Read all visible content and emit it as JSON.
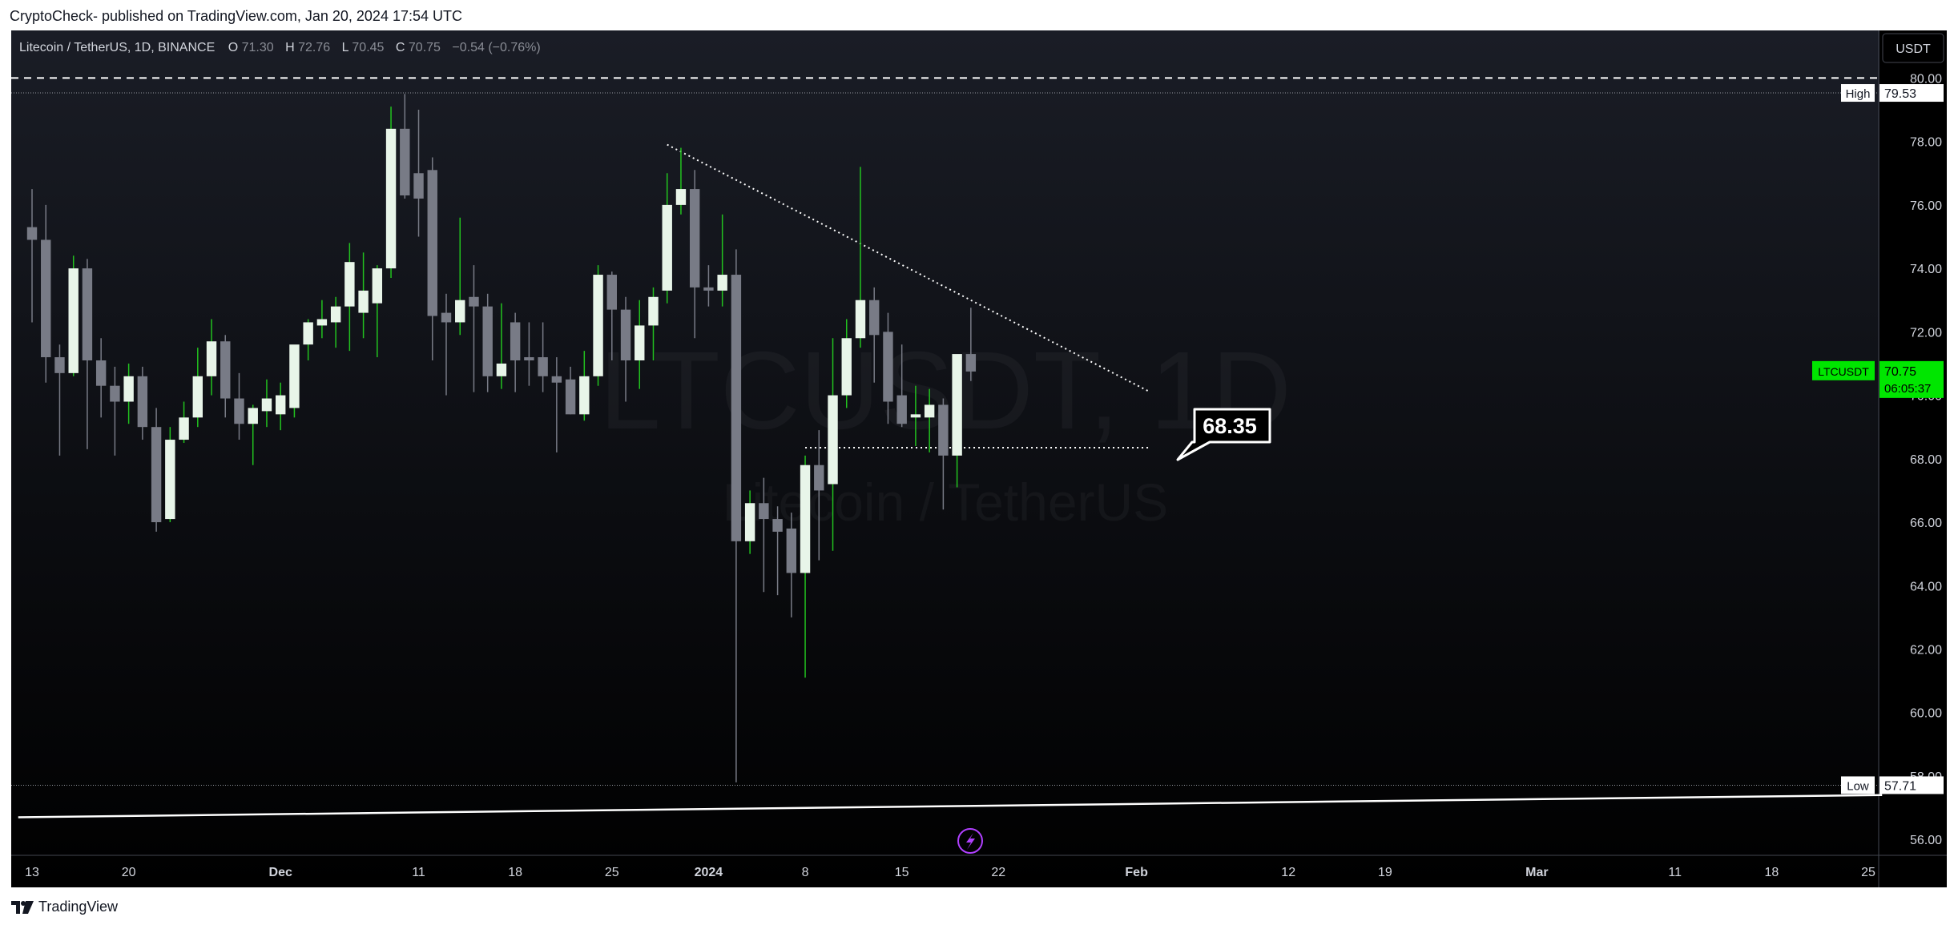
{
  "publish_info": "CryptoCheck- published on TradingView.com, Jan 20, 2024 17:54 UTC",
  "footer_brand": "TradingView",
  "colors": {
    "background_top": "#1a1d26",
    "background_bottom": "#000000",
    "up_candle": "#e8f5e9",
    "up_wick": "#22c21f",
    "down_candle": "#787b86",
    "down_wick": "#787b86",
    "accent_green": "#00e600",
    "text": "#d1d4dc"
  },
  "header": {
    "symbol": "Litecoin / TetherUS, 1D, BINANCE",
    "o_label": "O",
    "o_value": "71.30",
    "h_label": "H",
    "h_value": "72.76",
    "l_label": "L",
    "l_value": "70.45",
    "c_label": "C",
    "c_value": "70.75",
    "change": "−0.54 (−0.76%)"
  },
  "currency_button": "USDT",
  "watermark": {
    "ticker": "LTCUSDT, 1D",
    "name": "Litecoin / TetherUS"
  },
  "price_badges": {
    "high_label": "High",
    "high_value": "79.53",
    "low_label": "Low",
    "low_value": "57.71",
    "last_label": "LTCUSDT",
    "last_value": "70.75",
    "countdown": "06:05:37"
  },
  "callout_label": "68.35",
  "chart_data": {
    "type": "candlestick",
    "title": "Litecoin / TetherUS, 1D, BINANCE",
    "ylim": [
      55.5,
      81.5
    ],
    "xlim": [
      "2023-11-13",
      "2024-03-25"
    ],
    "y_ticks": [
      "56.00",
      "58.00",
      "60.00",
      "62.00",
      "64.00",
      "66.00",
      "68.00",
      "70.00",
      "72.00",
      "74.00",
      "76.00",
      "78.00",
      "80.00"
    ],
    "x_ticks": [
      {
        "date": "2023-11-13",
        "label": "13"
      },
      {
        "date": "2023-11-20",
        "label": "20"
      },
      {
        "date": "2023-12-01",
        "label": "Dec"
      },
      {
        "date": "2023-12-11",
        "label": "11"
      },
      {
        "date": "2023-12-18",
        "label": "18"
      },
      {
        "date": "2023-12-25",
        "label": "25"
      },
      {
        "date": "2024-01-01",
        "label": "2024"
      },
      {
        "date": "2024-01-08",
        "label": "8"
      },
      {
        "date": "2024-01-15",
        "label": "15"
      },
      {
        "date": "2024-01-22",
        "label": "22"
      },
      {
        "date": "2024-02-01",
        "label": "Feb"
      },
      {
        "date": "2024-02-12",
        "label": "12"
      },
      {
        "date": "2024-02-19",
        "label": "19"
      },
      {
        "date": "2024-03-01",
        "label": "Mar"
      },
      {
        "date": "2024-03-11",
        "label": "11"
      },
      {
        "date": "2024-03-18",
        "label": "18"
      },
      {
        "date": "2024-03-25",
        "label": "25"
      }
    ],
    "candles": [
      {
        "date": "2023-11-13",
        "o": 75.3,
        "h": 76.5,
        "l": 72.3,
        "c": 74.9
      },
      {
        "date": "2023-11-14",
        "o": 74.9,
        "h": 76.0,
        "l": 70.4,
        "c": 71.2
      },
      {
        "date": "2023-11-15",
        "o": 71.2,
        "h": 71.6,
        "l": 68.1,
        "c": 70.7
      },
      {
        "date": "2023-11-16",
        "o": 70.7,
        "h": 74.4,
        "l": 70.6,
        "c": 74.0
      },
      {
        "date": "2023-11-17",
        "o": 74.0,
        "h": 74.3,
        "l": 68.3,
        "c": 71.1
      },
      {
        "date": "2023-11-18",
        "o": 71.1,
        "h": 71.8,
        "l": 69.3,
        "c": 70.3
      },
      {
        "date": "2023-11-19",
        "o": 70.3,
        "h": 70.9,
        "l": 68.1,
        "c": 69.8
      },
      {
        "date": "2023-11-20",
        "o": 69.8,
        "h": 71.0,
        "l": 69.1,
        "c": 70.6
      },
      {
        "date": "2023-11-21",
        "o": 70.6,
        "h": 70.9,
        "l": 68.6,
        "c": 69.0
      },
      {
        "date": "2023-11-22",
        "o": 69.0,
        "h": 69.6,
        "l": 65.7,
        "c": 66.0
      },
      {
        "date": "2023-11-23",
        "o": 66.1,
        "h": 69.0,
        "l": 66.0,
        "c": 68.6
      },
      {
        "date": "2023-11-24",
        "o": 68.6,
        "h": 69.8,
        "l": 68.5,
        "c": 69.3
      },
      {
        "date": "2023-11-25",
        "o": 69.3,
        "h": 71.5,
        "l": 69.0,
        "c": 70.6
      },
      {
        "date": "2023-11-26",
        "o": 70.6,
        "h": 72.4,
        "l": 70.0,
        "c": 71.7
      },
      {
        "date": "2023-11-27",
        "o": 71.7,
        "h": 71.9,
        "l": 69.3,
        "c": 69.9
      },
      {
        "date": "2023-11-28",
        "o": 69.9,
        "h": 70.7,
        "l": 68.6,
        "c": 69.1
      },
      {
        "date": "2023-11-29",
        "o": 69.1,
        "h": 69.7,
        "l": 67.8,
        "c": 69.6
      },
      {
        "date": "2023-11-30",
        "o": 69.5,
        "h": 70.5,
        "l": 69.0,
        "c": 69.9
      },
      {
        "date": "2023-12-01",
        "o": 69.4,
        "h": 70.4,
        "l": 68.9,
        "c": 70.0
      },
      {
        "date": "2023-12-02",
        "o": 69.6,
        "h": 71.5,
        "l": 69.3,
        "c": 71.6
      },
      {
        "date": "2023-12-03",
        "o": 71.6,
        "h": 72.4,
        "l": 71.1,
        "c": 72.3
      },
      {
        "date": "2023-12-04",
        "o": 72.2,
        "h": 73.0,
        "l": 71.8,
        "c": 72.4
      },
      {
        "date": "2023-12-05",
        "o": 72.3,
        "h": 73.1,
        "l": 71.5,
        "c": 72.8
      },
      {
        "date": "2023-12-06",
        "o": 72.8,
        "h": 74.8,
        "l": 71.4,
        "c": 74.2
      },
      {
        "date": "2023-12-07",
        "o": 72.6,
        "h": 74.5,
        "l": 71.8,
        "c": 73.3
      },
      {
        "date": "2023-12-08",
        "o": 72.9,
        "h": 74.1,
        "l": 71.2,
        "c": 74.0
      },
      {
        "date": "2023-12-09",
        "o": 74.0,
        "h": 79.1,
        "l": 73.7,
        "c": 78.4
      },
      {
        "date": "2023-12-10",
        "o": 78.4,
        "h": 79.5,
        "l": 76.2,
        "c": 76.3
      },
      {
        "date": "2023-12-11",
        "o": 77.0,
        "h": 79.0,
        "l": 75.0,
        "c": 76.2
      },
      {
        "date": "2023-12-12",
        "o": 77.1,
        "h": 77.5,
        "l": 71.1,
        "c": 72.5
      },
      {
        "date": "2023-12-13",
        "o": 72.6,
        "h": 73.2,
        "l": 70.0,
        "c": 72.3
      },
      {
        "date": "2023-12-14",
        "o": 72.3,
        "h": 75.6,
        "l": 71.9,
        "c": 73.0
      },
      {
        "date": "2023-12-15",
        "o": 73.1,
        "h": 74.1,
        "l": 70.1,
        "c": 72.8
      },
      {
        "date": "2023-12-16",
        "o": 72.8,
        "h": 73.2,
        "l": 70.1,
        "c": 70.6
      },
      {
        "date": "2023-12-17",
        "o": 70.6,
        "h": 72.9,
        "l": 70.2,
        "c": 71.0
      },
      {
        "date": "2023-12-18",
        "o": 72.3,
        "h": 72.6,
        "l": 70.1,
        "c": 71.1
      },
      {
        "date": "2023-12-19",
        "o": 71.2,
        "h": 72.3,
        "l": 70.3,
        "c": 71.1
      },
      {
        "date": "2023-12-20",
        "o": 71.2,
        "h": 72.3,
        "l": 70.1,
        "c": 70.6
      },
      {
        "date": "2023-12-21",
        "o": 70.6,
        "h": 71.2,
        "l": 68.2,
        "c": 70.4
      },
      {
        "date": "2023-12-22",
        "o": 70.5,
        "h": 70.9,
        "l": 69.4,
        "c": 69.4
      },
      {
        "date": "2023-12-23",
        "o": 69.4,
        "h": 71.4,
        "l": 69.2,
        "c": 70.6
      },
      {
        "date": "2023-12-24",
        "o": 70.6,
        "h": 74.1,
        "l": 70.3,
        "c": 73.8
      },
      {
        "date": "2023-12-25",
        "o": 73.8,
        "h": 73.9,
        "l": 71.1,
        "c": 72.7
      },
      {
        "date": "2023-12-26",
        "o": 72.7,
        "h": 73.1,
        "l": 69.8,
        "c": 71.1
      },
      {
        "date": "2023-12-27",
        "o": 71.1,
        "h": 73.0,
        "l": 70.2,
        "c": 72.2
      },
      {
        "date": "2023-12-28",
        "o": 72.2,
        "h": 73.4,
        "l": 71.1,
        "c": 73.1
      },
      {
        "date": "2023-12-29",
        "o": 73.3,
        "h": 77.0,
        "l": 72.9,
        "c": 76.0
      },
      {
        "date": "2023-12-30",
        "o": 76.0,
        "h": 77.8,
        "l": 75.7,
        "c": 76.5
      },
      {
        "date": "2023-12-31",
        "o": 76.5,
        "h": 77.1,
        "l": 71.8,
        "c": 73.4
      },
      {
        "date": "2024-01-01",
        "o": 73.4,
        "h": 74.1,
        "l": 72.8,
        "c": 73.3
      },
      {
        "date": "2024-01-02",
        "o": 73.3,
        "h": 75.7,
        "l": 72.8,
        "c": 73.8
      },
      {
        "date": "2024-01-03",
        "o": 73.8,
        "h": 74.6,
        "l": 57.8,
        "c": 65.4
      },
      {
        "date": "2024-01-04",
        "o": 65.4,
        "h": 67.0,
        "l": 65.0,
        "c": 66.6
      },
      {
        "date": "2024-01-05",
        "o": 66.6,
        "h": 67.4,
        "l": 63.8,
        "c": 66.1
      },
      {
        "date": "2024-01-06",
        "o": 66.1,
        "h": 66.5,
        "l": 63.7,
        "c": 65.7
      },
      {
        "date": "2024-01-07",
        "o": 65.8,
        "h": 66.3,
        "l": 63.0,
        "c": 64.4
      },
      {
        "date": "2024-01-08",
        "o": 64.4,
        "h": 68.1,
        "l": 61.1,
        "c": 67.8
      },
      {
        "date": "2024-01-09",
        "o": 67.8,
        "h": 68.9,
        "l": 64.8,
        "c": 67.0
      },
      {
        "date": "2024-01-10",
        "o": 67.2,
        "h": 71.8,
        "l": 65.1,
        "c": 70.0
      },
      {
        "date": "2024-01-11",
        "o": 70.0,
        "h": 72.4,
        "l": 69.6,
        "c": 71.8
      },
      {
        "date": "2024-01-12",
        "o": 71.8,
        "h": 77.2,
        "l": 71.5,
        "c": 73.0
      },
      {
        "date": "2024-01-13",
        "o": 73.0,
        "h": 73.4,
        "l": 70.4,
        "c": 71.9
      },
      {
        "date": "2024-01-14",
        "o": 72.0,
        "h": 72.6,
        "l": 69.1,
        "c": 69.8
      },
      {
        "date": "2024-01-15",
        "o": 70.0,
        "h": 71.6,
        "l": 69.0,
        "c": 69.1
      },
      {
        "date": "2024-01-16",
        "o": 69.3,
        "h": 70.3,
        "l": 68.4,
        "c": 69.4
      },
      {
        "date": "2024-01-17",
        "o": 69.3,
        "h": 70.2,
        "l": 68.2,
        "c": 69.7
      },
      {
        "date": "2024-01-18",
        "o": 69.7,
        "h": 69.9,
        "l": 66.4,
        "c": 68.1
      },
      {
        "date": "2024-01-19",
        "o": 68.1,
        "h": 71.2,
        "l": 67.1,
        "c": 71.3
      },
      {
        "date": "2024-01-20",
        "o": 71.3,
        "h": 72.76,
        "l": 70.45,
        "c": 70.75
      }
    ],
    "lines": [
      {
        "name": "trendline",
        "style": "dotted",
        "from": {
          "date": "2023-12-29",
          "y": 77.9
        },
        "to": {
          "date": "2024-02-02",
          "y": 70.1
        }
      },
      {
        "name": "support",
        "style": "dotted",
        "from": {
          "date": "2024-01-08",
          "y": 68.35
        },
        "to": {
          "date": "2024-02-02",
          "y": 68.35
        }
      },
      {
        "name": "resistance",
        "style": "dashed",
        "y": 80.0
      },
      {
        "name": "rising-line",
        "style": "solid",
        "from": {
          "date": "2023-11-12",
          "y": 56.7
        },
        "to": {
          "date": "2024-03-26",
          "y": 57.4
        }
      }
    ],
    "high": 79.53,
    "low": 57.71,
    "last": 70.75
  }
}
